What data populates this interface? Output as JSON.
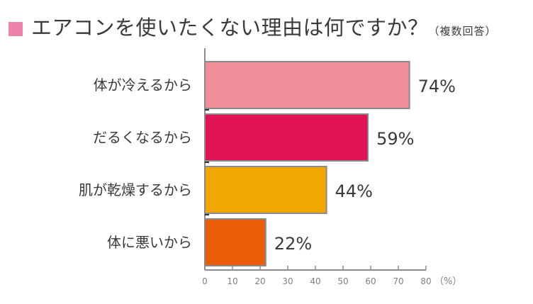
{
  "title": {
    "main": "エアコンを使いたくない理由は何ですか？",
    "sub": "（複数回答）",
    "marker_color": "#ee82ab"
  },
  "chart_data": {
    "type": "bar",
    "orientation": "horizontal",
    "categories": [
      "体が冷えるから",
      "だるくなるから",
      "肌が乾燥するから",
      "体に悪いから"
    ],
    "values": [
      74,
      59,
      44,
      22
    ],
    "value_labels": [
      "74%",
      "59%",
      "44%",
      "22%"
    ],
    "colors": [
      "#ee8f99",
      "#e01455",
      "#f2a600",
      "#eb5e07"
    ],
    "xlim": [
      0,
      80
    ],
    "x_ticks": [
      0,
      10,
      20,
      30,
      40,
      50,
      60,
      70,
      80
    ],
    "x_unit_label": "（%）",
    "grid": false
  }
}
